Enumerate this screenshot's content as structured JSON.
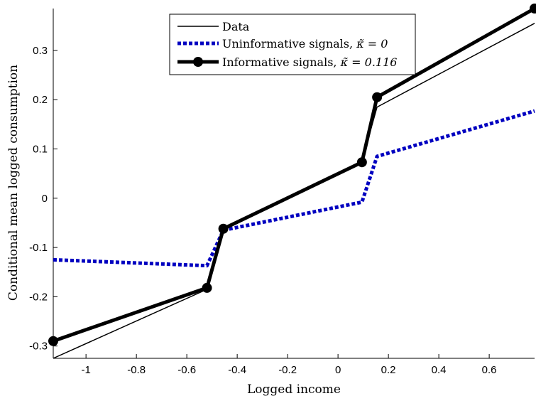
{
  "chart_data": {
    "type": "line",
    "xlabel": "Logged income",
    "ylabel": "Conditional mean logged consumption",
    "xlim": [
      -1.13,
      0.78
    ],
    "ylim": [
      -0.325,
      0.385
    ],
    "xticks": [
      -1,
      -0.8,
      -0.6,
      -0.4,
      -0.2,
      0,
      0.2,
      0.4,
      0.6
    ],
    "xtick_labels": [
      "-1",
      "-0.8",
      "-0.6",
      "-0.4",
      "-0.2",
      "0",
      "0.2",
      "0.4",
      "0.6"
    ],
    "yticks": [
      -0.3,
      -0.2,
      -0.1,
      0,
      0.1,
      0.2,
      0.3
    ],
    "ytick_labels": [
      "-0.3",
      "-0.2",
      "-0.1",
      "0",
      "0.1",
      "0.2",
      "0.3"
    ],
    "grid": false,
    "legend_position": "top-center",
    "series": [
      {
        "name": "Data",
        "style": "thin-solid",
        "color": "#000000",
        "x": [
          -1.13,
          -0.52,
          -0.455,
          0.095,
          0.155,
          0.78
        ],
        "y": [
          -0.325,
          -0.185,
          -0.065,
          0.075,
          0.185,
          0.355
        ]
      },
      {
        "name": "Uninformative signals, κ̃ = 0",
        "style": "dotted",
        "color": "#0000c0",
        "x": [
          -1.13,
          -0.52,
          -0.455,
          0.095,
          0.155,
          0.78
        ],
        "y": [
          -0.125,
          -0.137,
          -0.065,
          -0.008,
          0.085,
          0.177
        ]
      },
      {
        "name": "Informative signals, κ̃ = 0.116",
        "style": "thick-solid-markers",
        "color": "#000000",
        "x": [
          -1.13,
          -0.52,
          -0.455,
          0.095,
          0.155,
          0.78
        ],
        "y": [
          -0.29,
          -0.182,
          -0.062,
          0.073,
          0.205,
          0.385
        ]
      }
    ]
  },
  "legend": {
    "data_label": "Data",
    "uninf_prefix": "Uninformative signals, ",
    "uninf_math": "κ̃ = 0",
    "inf_prefix": "Informative signals, ",
    "inf_math": "κ̃ = 0.116"
  }
}
